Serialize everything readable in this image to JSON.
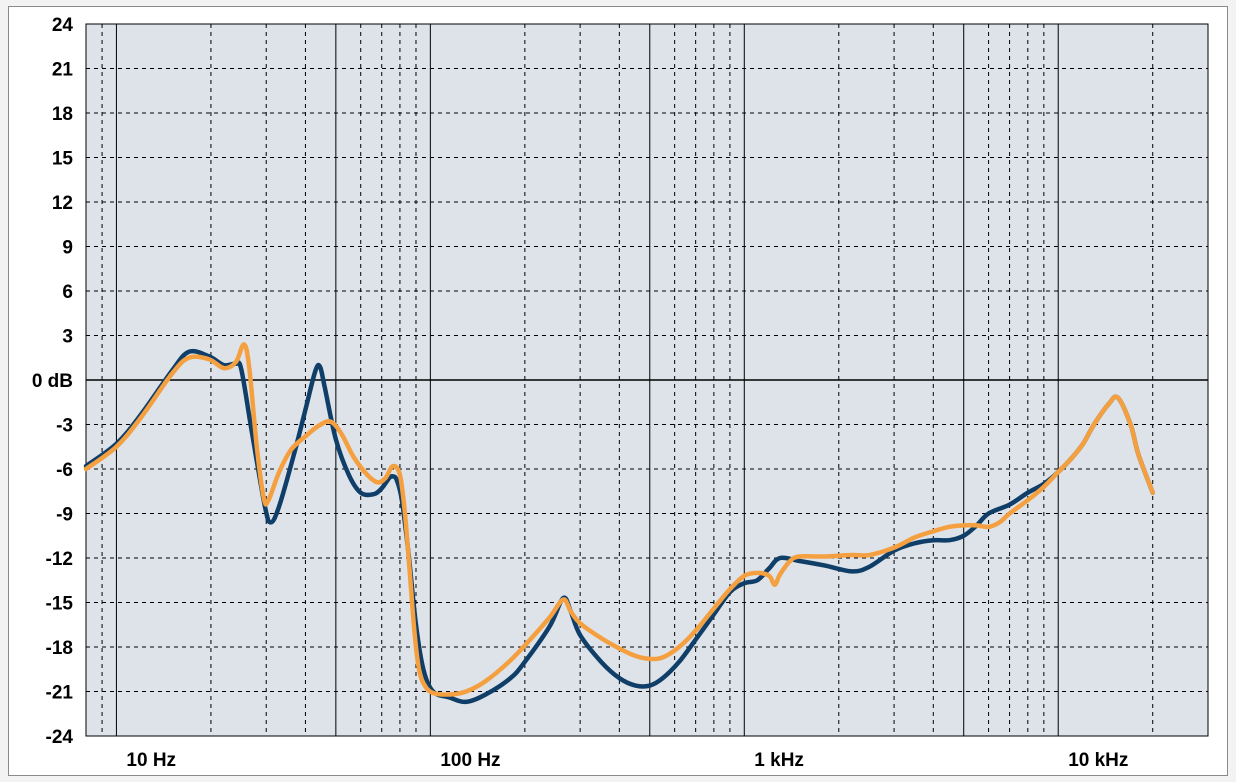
{
  "chart_data": {
    "type": "line",
    "title": "",
    "xlabel": "",
    "ylabel": "",
    "x_scale": "log",
    "xlim": [
      8,
      30000
    ],
    "ylim": [
      -24,
      24
    ],
    "y_ticks": [
      24,
      21,
      18,
      15,
      12,
      9,
      6,
      3,
      0,
      -3,
      -6,
      -9,
      -12,
      -15,
      -18,
      -21,
      -24
    ],
    "y_tick_labels": [
      "24",
      "21",
      "18",
      "15",
      "12",
      "9",
      "6",
      "3",
      "0 dB",
      "-3",
      "-6",
      "-9",
      "-12",
      "-15",
      "-18",
      "-21",
      "-24"
    ],
    "x_tick_labels": [
      {
        "value": 10,
        "label": "10 Hz"
      },
      {
        "value": 100,
        "label": "100 Hz"
      },
      {
        "value": 1000,
        "label": "1 kHz"
      },
      {
        "value": 10000,
        "label": "10 kHz"
      }
    ],
    "grid": true,
    "background_color": "#dde3e9",
    "series": [
      {
        "color": "#0f3e68",
        "points": [
          [
            8,
            -5.8
          ],
          [
            10,
            -4.3
          ],
          [
            12,
            -2.3
          ],
          [
            15,
            0.6
          ],
          [
            17,
            1.9
          ],
          [
            19.7,
            1.6
          ],
          [
            22,
            1.0
          ],
          [
            24,
            1.1
          ],
          [
            25,
            0.7
          ],
          [
            27,
            -3.5
          ],
          [
            29.7,
            -8.5
          ],
          [
            31,
            -9.6
          ],
          [
            33,
            -8.5
          ],
          [
            37,
            -4.8
          ],
          [
            40,
            -2.0
          ],
          [
            43,
            0.6
          ],
          [
            44.5,
            0.9
          ],
          [
            46,
            -0.4
          ],
          [
            50,
            -4.0
          ],
          [
            55,
            -6.4
          ],
          [
            60,
            -7.6
          ],
          [
            66,
            -7.7
          ],
          [
            70,
            -7.3
          ],
          [
            74,
            -6.6
          ],
          [
            76,
            -6.5
          ],
          [
            78,
            -6.7
          ],
          [
            81,
            -8.0
          ],
          [
            85,
            -11.5
          ],
          [
            90,
            -16.5
          ],
          [
            95,
            -19.5
          ],
          [
            102,
            -21.0
          ],
          [
            115,
            -21.4
          ],
          [
            130,
            -21.7
          ],
          [
            150,
            -21.2
          ],
          [
            180,
            -20.1
          ],
          [
            200,
            -19.0
          ],
          [
            240,
            -16.6
          ],
          [
            265,
            -14.7
          ],
          [
            280,
            -15.6
          ],
          [
            300,
            -17.2
          ],
          [
            350,
            -19.0
          ],
          [
            400,
            -20.1
          ],
          [
            450,
            -20.6
          ],
          [
            500,
            -20.6
          ],
          [
            550,
            -20.1
          ],
          [
            620,
            -19.0
          ],
          [
            700,
            -17.5
          ],
          [
            800,
            -15.8
          ],
          [
            900,
            -14.3
          ],
          [
            1000,
            -13.7
          ],
          [
            1100,
            -13.5
          ],
          [
            1200,
            -12.7
          ],
          [
            1300,
            -12.0
          ],
          [
            1500,
            -12.2
          ],
          [
            1800,
            -12.5
          ],
          [
            2200,
            -12.9
          ],
          [
            2500,
            -12.6
          ],
          [
            3000,
            -11.5
          ],
          [
            3500,
            -11.0
          ],
          [
            4000,
            -10.8
          ],
          [
            4500,
            -10.8
          ],
          [
            5000,
            -10.5
          ],
          [
            5500,
            -9.8
          ],
          [
            6000,
            -9.0
          ],
          [
            7000,
            -8.4
          ],
          [
            8000,
            -7.6
          ],
          [
            9000,
            -7.0
          ],
          [
            10000,
            -6.2
          ],
          [
            11000,
            -5.3
          ],
          [
            12000,
            -4.3
          ],
          [
            13000,
            -3.0
          ],
          [
            14500,
            -1.6
          ],
          [
            15500,
            -1.2
          ],
          [
            17000,
            -3.0
          ],
          [
            18000,
            -5.0
          ],
          [
            20000,
            -7.6
          ]
        ]
      },
      {
        "color": "#f5a040",
        "points": [
          [
            8,
            -6.0
          ],
          [
            10,
            -4.5
          ],
          [
            12,
            -2.5
          ],
          [
            15,
            0.4
          ],
          [
            17,
            1.5
          ],
          [
            19.7,
            1.4
          ],
          [
            22,
            0.8
          ],
          [
            24,
            1.2
          ],
          [
            25.5,
            2.4
          ],
          [
            26.5,
            0.8
          ],
          [
            28,
            -4.5
          ],
          [
            29.5,
            -8.0
          ],
          [
            30.5,
            -8.1
          ],
          [
            33,
            -6.2
          ],
          [
            36,
            -4.7
          ],
          [
            40,
            -3.8
          ],
          [
            44,
            -3.1
          ],
          [
            48,
            -2.8
          ],
          [
            52,
            -3.6
          ],
          [
            57,
            -5.2
          ],
          [
            63,
            -6.4
          ],
          [
            68,
            -6.9
          ],
          [
            72,
            -6.6
          ],
          [
            76,
            -5.8
          ],
          [
            80,
            -6.4
          ],
          [
            83,
            -9.0
          ],
          [
            86,
            -13.0
          ],
          [
            89,
            -17.0
          ],
          [
            92,
            -19.5
          ],
          [
            96,
            -20.6
          ],
          [
            102,
            -21.1
          ],
          [
            115,
            -21.2
          ],
          [
            130,
            -21.0
          ],
          [
            150,
            -20.3
          ],
          [
            180,
            -18.9
          ],
          [
            210,
            -17.4
          ],
          [
            240,
            -16.0
          ],
          [
            265,
            -14.8
          ],
          [
            280,
            -15.6
          ],
          [
            300,
            -16.4
          ],
          [
            350,
            -17.4
          ],
          [
            400,
            -18.1
          ],
          [
            450,
            -18.6
          ],
          [
            500,
            -18.8
          ],
          [
            550,
            -18.7
          ],
          [
            620,
            -18.0
          ],
          [
            700,
            -16.9
          ],
          [
            800,
            -15.4
          ],
          [
            900,
            -14.1
          ],
          [
            1000,
            -13.2
          ],
          [
            1100,
            -13.0
          ],
          [
            1200,
            -13.2
          ],
          [
            1250,
            -13.8
          ],
          [
            1300,
            -13.1
          ],
          [
            1400,
            -12.2
          ],
          [
            1500,
            -11.9
          ],
          [
            1800,
            -11.9
          ],
          [
            2200,
            -11.8
          ],
          [
            2500,
            -11.8
          ],
          [
            3000,
            -11.3
          ],
          [
            3500,
            -10.6
          ],
          [
            4000,
            -10.2
          ],
          [
            4500,
            -9.9
          ],
          [
            5000,
            -9.8
          ],
          [
            5500,
            -9.8
          ],
          [
            6000,
            -9.9
          ],
          [
            6500,
            -9.6
          ],
          [
            7000,
            -9.0
          ],
          [
            8000,
            -8.1
          ],
          [
            9000,
            -7.2
          ],
          [
            10000,
            -6.2
          ],
          [
            11000,
            -5.3
          ],
          [
            12000,
            -4.3
          ],
          [
            13000,
            -3.0
          ],
          [
            14500,
            -1.6
          ],
          [
            15500,
            -1.2
          ],
          [
            17000,
            -3.0
          ],
          [
            18000,
            -5.0
          ],
          [
            20000,
            -7.6
          ]
        ]
      }
    ]
  }
}
